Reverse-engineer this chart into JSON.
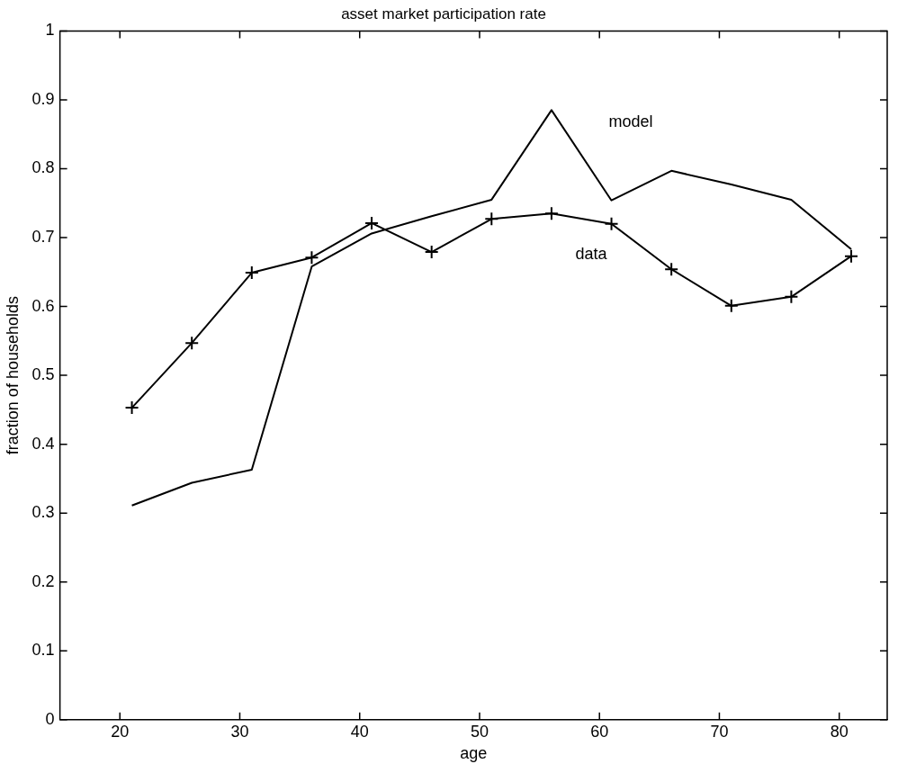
{
  "chart_data": {
    "type": "line",
    "title": "asset market participation rate",
    "xlabel": "age",
    "ylabel": "fraction of households",
    "x": [
      21,
      26,
      31,
      36,
      41,
      46,
      51,
      56,
      61,
      66,
      71,
      76,
      81
    ],
    "series": [
      {
        "name": "model",
        "color": "#000000",
        "marker": "none",
        "values": [
          0.311,
          0.344,
          0.363,
          0.658,
          0.706,
          0.731,
          0.755,
          0.885,
          0.754,
          0.797,
          0.777,
          0.755,
          0.683
        ]
      },
      {
        "name": "data",
        "color": "#000000",
        "marker": "cross",
        "values": [
          0.453,
          0.547,
          0.649,
          0.671,
          0.721,
          0.679,
          0.727,
          0.735,
          0.72,
          0.654,
          0.601,
          0.614,
          0.673
        ]
      }
    ],
    "xlim": [
      15,
      84
    ],
    "xticks": [
      20,
      30,
      40,
      50,
      60,
      70,
      80
    ],
    "ylim": [
      0,
      1
    ],
    "yticks": [
      0,
      0.1,
      0.2,
      0.3,
      0.4,
      0.5,
      0.6,
      0.7,
      0.8,
      0.9,
      1
    ],
    "grid": false,
    "legend": false
  }
}
